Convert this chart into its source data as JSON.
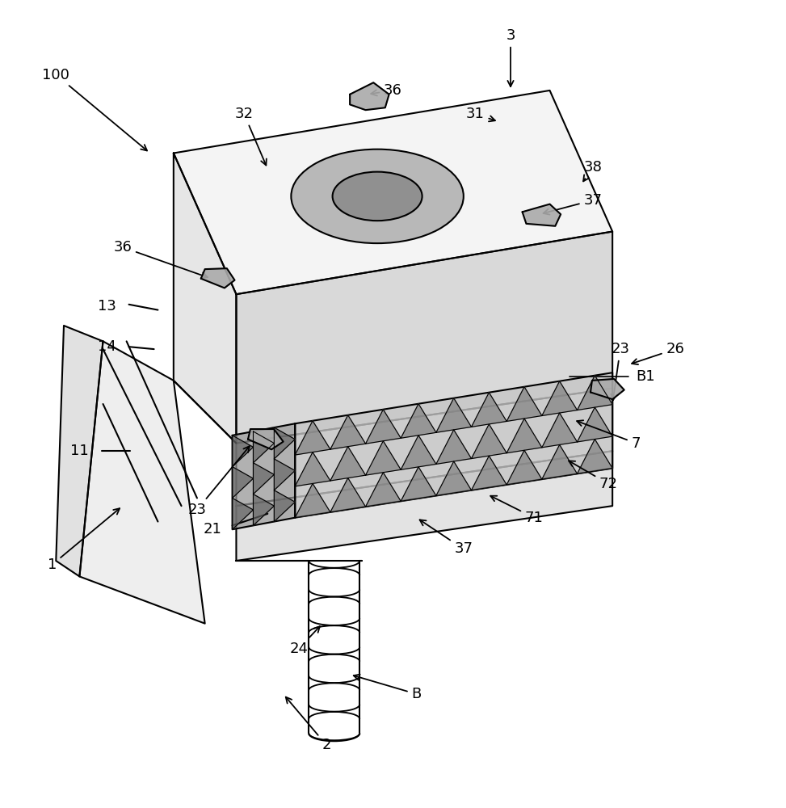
{
  "bg_color": "#ffffff",
  "line_color": "#000000",
  "line_width": 1.5,
  "annotation_fontsize": 13
}
